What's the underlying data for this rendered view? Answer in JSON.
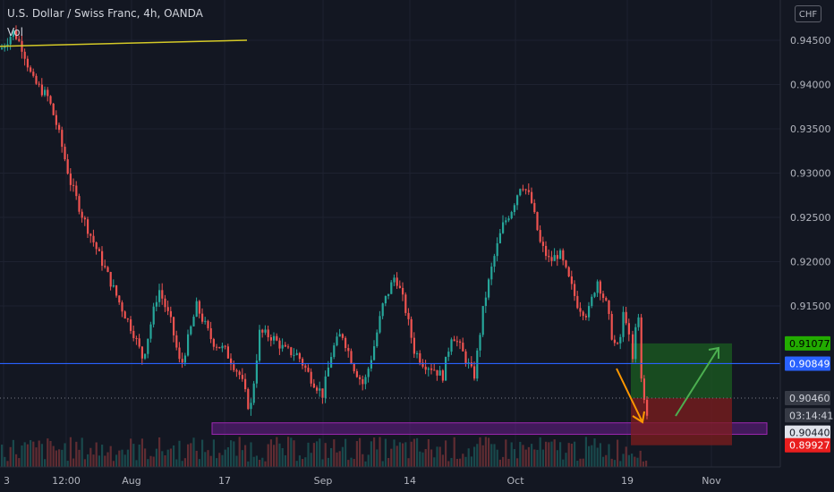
{
  "header": {
    "title": "U.S. Dollar / Swiss Franc, 4h, OANDA",
    "indicator": "Vol",
    "currency_button": "CHF"
  },
  "chart_data": {
    "type": "candlestick",
    "symbol": "USDCHF",
    "ylim": [
      0.8985,
      0.9475
    ],
    "y_ticks": [
      "0.94500",
      "0.94000",
      "0.93500",
      "0.93000",
      "0.92500",
      "0.92000",
      "0.91500"
    ],
    "x_tick_labels": [
      "3",
      "12:00",
      "Aug",
      "17",
      "Sep",
      "14",
      "Oct",
      "19",
      "Nov"
    ],
    "price_path": [
      [
        0,
        0.944
      ],
      [
        0.02,
        0.946
      ],
      [
        0.035,
        0.944
      ],
      [
        0.05,
        0.9405
      ],
      [
        0.075,
        0.9385
      ],
      [
        0.09,
        0.935
      ],
      [
        0.11,
        0.929
      ],
      [
        0.13,
        0.925
      ],
      [
        0.16,
        0.92
      ],
      [
        0.19,
        0.915
      ],
      [
        0.21,
        0.912
      ],
      [
        0.225,
        0.909
      ],
      [
        0.25,
        0.917
      ],
      [
        0.27,
        0.913
      ],
      [
        0.285,
        0.908
      ],
      [
        0.31,
        0.915
      ],
      [
        0.335,
        0.911
      ],
      [
        0.355,
        0.91
      ],
      [
        0.38,
        0.907
      ],
      [
        0.395,
        0.903
      ],
      [
        0.41,
        0.912
      ],
      [
        0.43,
        0.9115
      ],
      [
        0.45,
        0.91
      ],
      [
        0.47,
        0.9095
      ],
      [
        0.49,
        0.907
      ],
      [
        0.51,
        0.905
      ],
      [
        0.525,
        0.91
      ],
      [
        0.54,
        0.912
      ],
      [
        0.56,
        0.908
      ],
      [
        0.575,
        0.906
      ],
      [
        0.59,
        0.91
      ],
      [
        0.605,
        0.915
      ],
      [
        0.625,
        0.9185
      ],
      [
        0.64,
        0.915
      ],
      [
        0.655,
        0.91
      ],
      [
        0.67,
        0.9085
      ],
      [
        0.685,
        0.908
      ],
      [
        0.7,
        0.907
      ],
      [
        0.715,
        0.912
      ],
      [
        0.73,
        0.91
      ],
      [
        0.75,
        0.907
      ],
      [
        0.765,
        0.915
      ],
      [
        0.78,
        0.92
      ],
      [
        0.795,
        0.924
      ],
      [
        0.81,
        0.926
      ],
      [
        0.825,
        0.929
      ],
      [
        0.84,
        0.927
      ],
      [
        0.855,
        0.922
      ],
      [
        0.87,
        0.92
      ],
      [
        0.885,
        0.921
      ],
      [
        0.9,
        0.918
      ],
      [
        0.915,
        0.915
      ],
      [
        0.93,
        0.914
      ],
      [
        0.945,
        0.918
      ],
      [
        0.96,
        0.915
      ],
      [
        0.97,
        0.911
      ],
      [
        0.98,
        0.91
      ],
      [
        0.985,
        0.914
      ],
      [
        0.99,
        0.914
      ],
      [
        1.0,
        0.909
      ]
    ],
    "price_path_2": [
      [
        0,
        0.909
      ],
      [
        0.1,
        0.9085
      ],
      [
        0.2,
        0.913
      ],
      [
        0.3,
        0.914
      ],
      [
        0.4,
        0.9145
      ],
      [
        0.5,
        0.91
      ],
      [
        0.6,
        0.908
      ],
      [
        0.7,
        0.9085
      ],
      [
        0.8,
        0.906
      ],
      [
        0.9,
        0.9048
      ],
      [
        1.0,
        0.9046
      ]
    ],
    "horizontal_lines": [
      {
        "label": "0.90849",
        "value": 0.90849,
        "color": "#2962ff"
      }
    ],
    "price_labels": [
      {
        "label": "0.91077",
        "value": 0.91077,
        "bg": "#22ab00",
        "fg": "#000000"
      },
      {
        "label": "0.90849",
        "value": 0.90849,
        "bg": "#2962ff",
        "fg": "#ffffff"
      },
      {
        "label": "0.90460",
        "value": 0.9046,
        "bg": "#363a45",
        "fg": "#d1d4dc"
      },
      {
        "label": "03:14:41",
        "value": 0.90265,
        "bg": "#363a45",
        "fg": "#d1d4dc"
      },
      {
        "label": "0.90440",
        "value": 0.9007,
        "bg": "#e0e3eb",
        "fg": "#131722"
      },
      {
        "label": "0.89927",
        "value": 0.89927,
        "bg": "#e91e1e",
        "fg": "#ffffff"
      }
    ],
    "trendline": {
      "x1": "start",
      "y1": 0.94432,
      "x2": "~Aug 10",
      "y2": 0.945,
      "color": "#d4c927"
    },
    "position": {
      "target": 0.91077,
      "entry": 0.9046,
      "stop": 0.89927
    },
    "support_zone": {
      "top": 0.9018,
      "bottom": 0.9005,
      "color": "#7b1fa2"
    },
    "colors": {
      "up": "#26a69a",
      "down": "#ef5350",
      "bg": "#131722",
      "grid": "#1e2230",
      "text": "#b2b5be"
    }
  }
}
